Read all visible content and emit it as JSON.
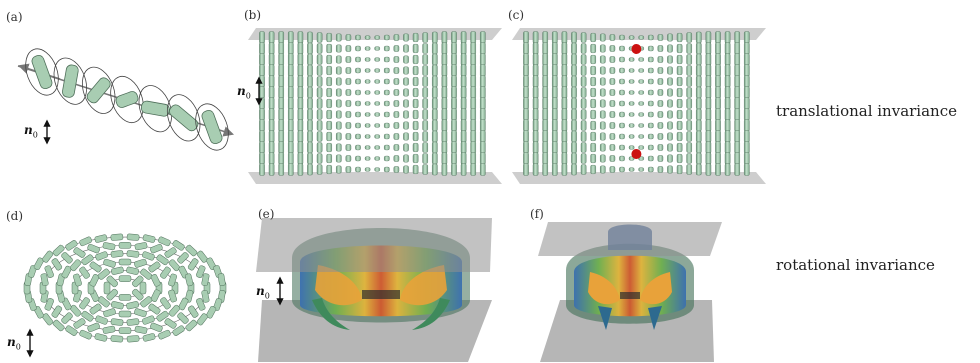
{
  "panels": {
    "a": "(a)",
    "b": "(b)",
    "c": "(c)",
    "d": "(d)",
    "e": "(e)",
    "f": "(f)"
  },
  "director_label": {
    "symbol": "n",
    "subscript": "0"
  },
  "row_labels": {
    "top": "translational invariance",
    "bottom": "rotational invariance"
  },
  "colors": {
    "cylinder": "#a8cdb2",
    "cylinder_edge": "#4f6f5a",
    "plate": "#b9b9b9",
    "defect": "#cc1111"
  }
}
